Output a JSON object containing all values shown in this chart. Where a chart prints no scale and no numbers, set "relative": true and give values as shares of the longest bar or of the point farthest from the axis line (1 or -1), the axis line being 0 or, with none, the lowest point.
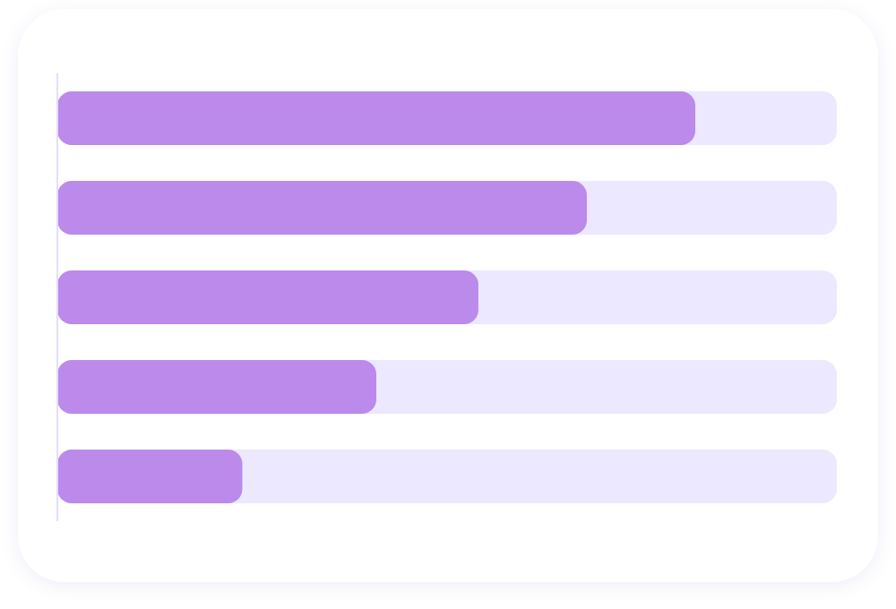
{
  "chart_data": {
    "type": "bar",
    "orientation": "horizontal",
    "relative": true,
    "categories": [
      null,
      null,
      null,
      null,
      null
    ],
    "values": [
      1,
      0.83,
      0.66,
      0.5,
      0.29
    ],
    "color": "#bb8aeb"
  }
}
